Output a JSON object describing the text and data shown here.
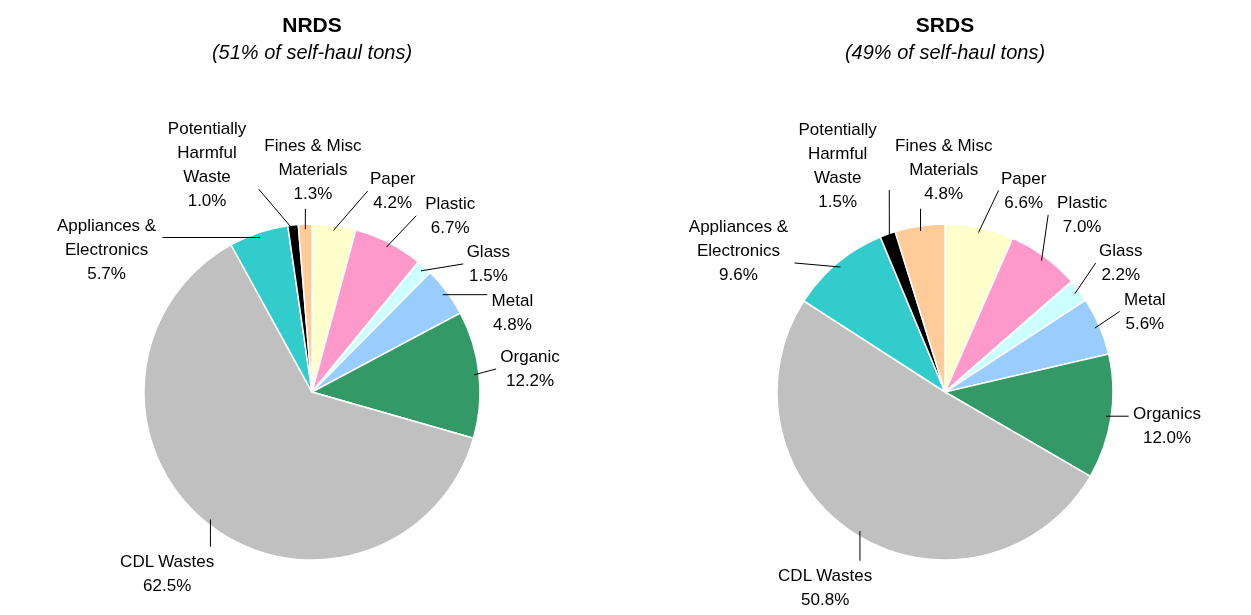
{
  "chart_data": [
    {
      "type": "pie",
      "title": "NRDS",
      "subtitle": "(51% of self-haul tons)",
      "categories": [
        "Paper",
        "Plastic",
        "Glass",
        "Metal",
        "Organic",
        "CDL Wastes",
        "Appliances & Electronics",
        "Potentially Harmful Waste",
        "Fines & Misc Materials"
      ],
      "values": [
        4.2,
        6.7,
        1.5,
        4.8,
        12.2,
        62.5,
        5.7,
        1.0,
        1.3
      ],
      "value_labels": [
        "4.2%",
        "6.7%",
        "1.5%",
        "4.8%",
        "12.2%",
        "62.5%",
        "5.7%",
        "1.0%",
        "1.3%"
      ],
      "colors": [
        "#ffffcc",
        "#ff99cc",
        "#ccffff",
        "#99ccff",
        "#339966",
        "#c0c0c0",
        "#33cccc",
        "#000000",
        "#ffcc99"
      ]
    },
    {
      "type": "pie",
      "title": "SRDS",
      "subtitle": "(49% of self-haul tons)",
      "categories": [
        "Paper",
        "Plastic",
        "Glass",
        "Metal",
        "Organics",
        "CDL Wastes",
        "Appliances & Electronics",
        "Potentially Harmful Waste",
        "Fines & Misc Materials"
      ],
      "values": [
        6.6,
        7.0,
        2.2,
        5.6,
        12.0,
        50.8,
        9.6,
        1.5,
        4.8
      ],
      "value_labels": [
        "6.6%",
        "7.0%",
        "2.2%",
        "5.6%",
        "12.0%",
        "50.8%",
        "9.6%",
        "1.5%",
        "4.8%"
      ],
      "colors": [
        "#ffffcc",
        "#ff99cc",
        "#ccffff",
        "#99ccff",
        "#339966",
        "#c0c0c0",
        "#33cccc",
        "#000000",
        "#ffcc99"
      ]
    }
  ]
}
